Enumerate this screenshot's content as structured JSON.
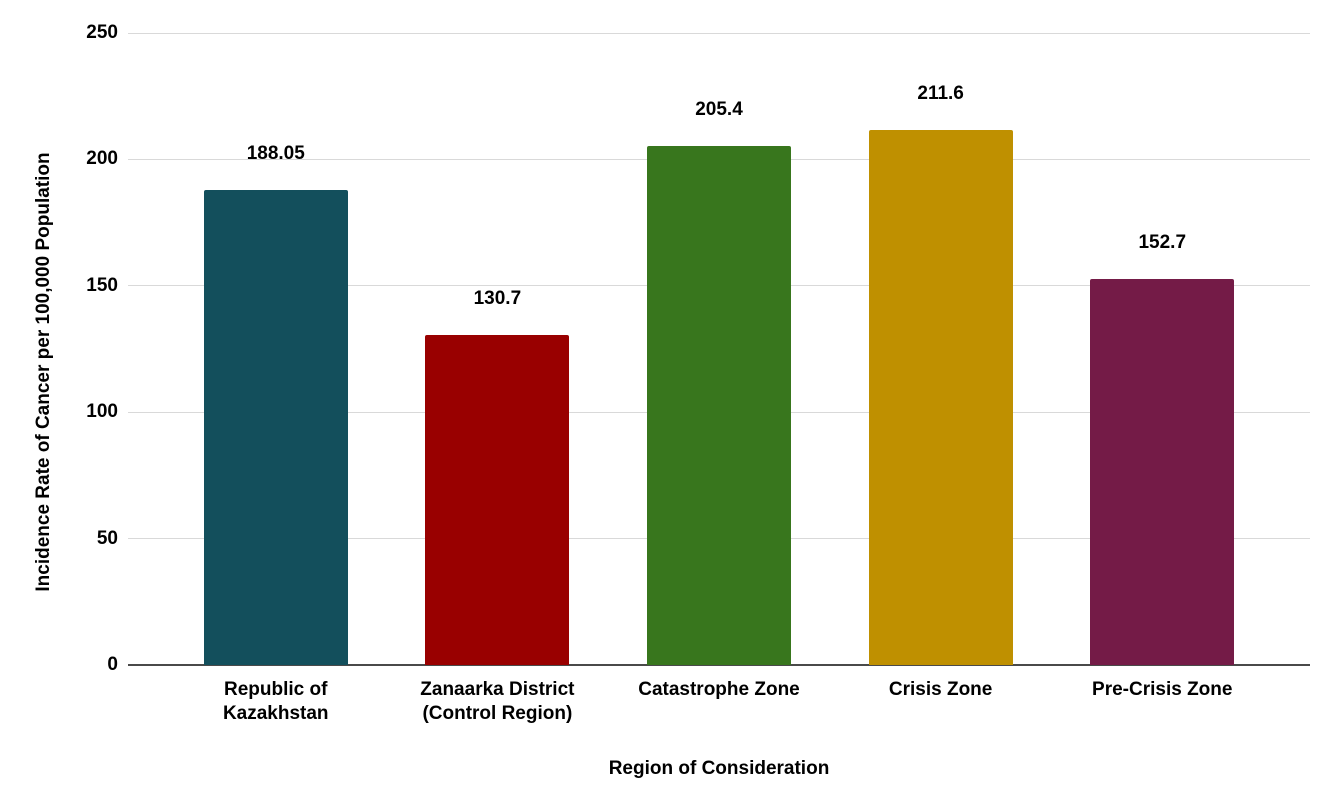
{
  "chart_data": {
    "type": "bar",
    "title": "",
    "xlabel": "Region of Consideration",
    "ylabel": "Incidence Rate of Cancer per 100,000 Population",
    "categories": [
      "Republic of\nKazakhstan",
      "Zanaarka District\n(Control Region)",
      "Catastrophe Zone",
      "Crisis Zone",
      "Pre-Crisis Zone"
    ],
    "values": [
      188.05,
      130.7,
      205.4,
      211.6,
      152.7
    ],
    "value_labels": [
      "188.05",
      "130.7",
      "205.4",
      "211.6",
      "152.7"
    ],
    "bar_colors": [
      "#134f5c",
      "#990000",
      "#38761d",
      "#bf9000",
      "#741b47"
    ],
    "ylim": [
      0,
      250
    ],
    "yticks": [
      0,
      50,
      100,
      150,
      200,
      250
    ],
    "grid": true,
    "legend": false,
    "background_color": "#ffffff",
    "gridline_color": "#d9d9d9",
    "axis_line_color": "#4a4a4a",
    "label_color": "#000000"
  }
}
